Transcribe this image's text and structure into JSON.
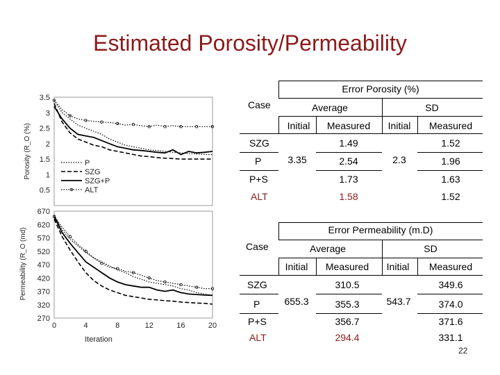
{
  "slide": {
    "title": "Estimated Porosity/Permeability",
    "page_number": "22"
  },
  "chart_data": [
    {
      "type": "line",
      "ylabel": "Porosity (R_O (%)",
      "xlabel": "",
      "x": [
        0,
        1,
        2,
        3,
        4,
        5,
        6,
        7,
        8,
        9,
        10,
        11,
        12,
        13,
        14,
        15,
        16,
        17,
        18,
        19,
        20
      ],
      "xlim": [
        0,
        20
      ],
      "ylim": [
        0,
        3.5
      ],
      "yticks": [
        "3.5",
        "3",
        "2.5",
        "2",
        "1.5",
        "1",
        "0.5"
      ],
      "series": [
        {
          "name": "P",
          "style": "dotted",
          "values": [
            3.4,
            3.0,
            2.8,
            2.6,
            2.5,
            2.4,
            2.3,
            2.15,
            2.05,
            1.95,
            1.9,
            1.85,
            1.8,
            1.78,
            1.75,
            1.72,
            1.7,
            1.68,
            1.67,
            1.65,
            1.65
          ]
        },
        {
          "name": "SZG",
          "style": "dashed",
          "values": [
            3.3,
            2.7,
            2.35,
            2.15,
            2.05,
            1.95,
            1.9,
            1.8,
            1.75,
            1.7,
            1.65,
            1.6,
            1.58,
            1.55,
            1.53,
            1.52,
            1.5,
            1.5,
            1.5,
            1.5,
            1.5
          ]
        },
        {
          "name": "SZG+P",
          "style": "solid",
          "values": [
            3.2,
            2.8,
            2.5,
            2.3,
            2.25,
            2.2,
            2.1,
            2.0,
            1.9,
            1.85,
            1.8,
            1.78,
            1.75,
            1.72,
            1.7,
            1.8,
            1.65,
            1.75,
            1.7,
            1.72,
            1.75
          ]
        },
        {
          "name": "ALT",
          "style": "dotted-marker",
          "values": [
            3.4,
            3.1,
            2.9,
            2.8,
            2.75,
            2.72,
            2.7,
            2.68,
            2.65,
            2.6,
            2.62,
            2.58,
            2.55,
            2.6,
            2.55,
            2.58,
            2.55,
            2.55,
            2.55,
            2.55,
            2.55
          ]
        }
      ],
      "legend": "bottom-left"
    },
    {
      "type": "line",
      "ylabel": "Permeability (R_O (md)",
      "xlabel": "Iteration",
      "x": [
        0,
        1,
        2,
        3,
        4,
        5,
        6,
        7,
        8,
        9,
        10,
        11,
        12,
        13,
        14,
        15,
        16,
        17,
        18,
        19,
        20
      ],
      "xlim": [
        0,
        20
      ],
      "xticks": [
        "0",
        "4",
        "8",
        "12",
        "16",
        "20"
      ],
      "ylim": [
        270,
        670
      ],
      "yticks": [
        "670",
        "620",
        "570",
        "520",
        "470",
        "420",
        "370",
        "320",
        "270"
      ],
      "series": [
        {
          "name": "P",
          "style": "dotted",
          "values": [
            655,
            600,
            565,
            540,
            515,
            495,
            480,
            465,
            450,
            440,
            425,
            415,
            405,
            400,
            395,
            390,
            380,
            375,
            365,
            360,
            355
          ]
        },
        {
          "name": "SZG",
          "style": "dashed",
          "values": [
            640,
            575,
            525,
            480,
            440,
            410,
            390,
            375,
            365,
            355,
            350,
            345,
            340,
            338,
            335,
            333,
            330,
            328,
            326,
            325,
            322
          ]
        },
        {
          "name": "SZG+P",
          "style": "solid",
          "values": [
            650,
            590,
            550,
            515,
            480,
            460,
            440,
            420,
            405,
            395,
            390,
            385,
            385,
            375,
            370,
            375,
            365,
            360,
            358,
            356,
            355
          ]
        },
        {
          "name": "ALT",
          "style": "dotted-marker",
          "values": [
            650,
            610,
            575,
            545,
            520,
            495,
            475,
            460,
            455,
            445,
            440,
            430,
            420,
            410,
            405,
            400,
            395,
            390,
            385,
            380,
            380
          ]
        }
      ]
    }
  ],
  "porosity_table": {
    "title": "Error Porosity (%)",
    "case_header": "Case",
    "average_header": "Average",
    "sd_header": "SD",
    "initial_header": "Initial",
    "measured_header": "Measured",
    "avg_initial": "3.35",
    "sd_initial": "2.3",
    "rows": [
      {
        "case": "SZG",
        "avg_measured": "1.49",
        "sd_measured": "1.52"
      },
      {
        "case": "P",
        "avg_measured": "2.54",
        "sd_measured": "1.96"
      },
      {
        "case": "P+S",
        "avg_measured": "1.73",
        "sd_measured": "1.63"
      },
      {
        "case": "ALT",
        "avg_measured": "1.58",
        "sd_measured": "1.52"
      }
    ]
  },
  "permeability_table": {
    "title": "Error Permeability (m.D)",
    "case_header": "Case",
    "average_header": "Average",
    "sd_header": "SD",
    "initial_header": "Initial",
    "measured_header": "Measured",
    "avg_initial": "655.3",
    "sd_initial": "543.7",
    "rows": [
      {
        "case": "SZG",
        "avg_measured": "310.5",
        "sd_measured": "349.6"
      },
      {
        "case": "P",
        "avg_measured": "355.3",
        "sd_measured": "374.0"
      },
      {
        "case": "P+S",
        "avg_measured": "356.7",
        "sd_measured": "371.6"
      },
      {
        "case": "ALT",
        "avg_measured": "294.4",
        "sd_measured": "331.1"
      }
    ]
  }
}
